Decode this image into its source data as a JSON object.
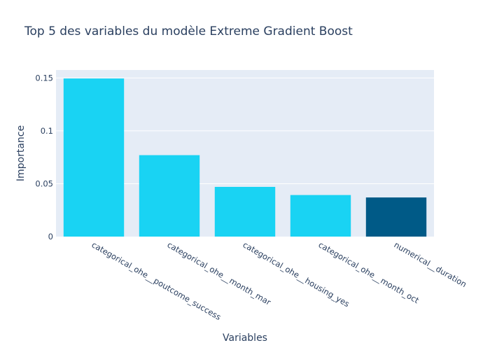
{
  "chart_data": {
    "type": "bar",
    "title": "Top 5 des variables du modèle Extreme Gradient Boost",
    "xlabel": "Variables",
    "ylabel": "Importance",
    "categories": [
      "categorical_ohe__poutcome_success",
      "categorical_ohe__month_mar",
      "categorical_ohe__housing_yes",
      "categorical_ohe__month_oct",
      "numerical__duration"
    ],
    "values": [
      0.1495,
      0.077,
      0.047,
      0.0393,
      0.037
    ],
    "bar_colors": [
      "#19d3f3",
      "#19d3f3",
      "#19d3f3",
      "#19d3f3",
      "#005a87"
    ],
    "ylim": [
      0,
      0.1575
    ],
    "yticks": [
      0,
      0.05,
      0.1,
      0.15
    ],
    "ytick_labels": [
      "0",
      "0.05",
      "0.1",
      "0.15"
    ],
    "grid": true,
    "plot_background": "#e5ecf6"
  }
}
